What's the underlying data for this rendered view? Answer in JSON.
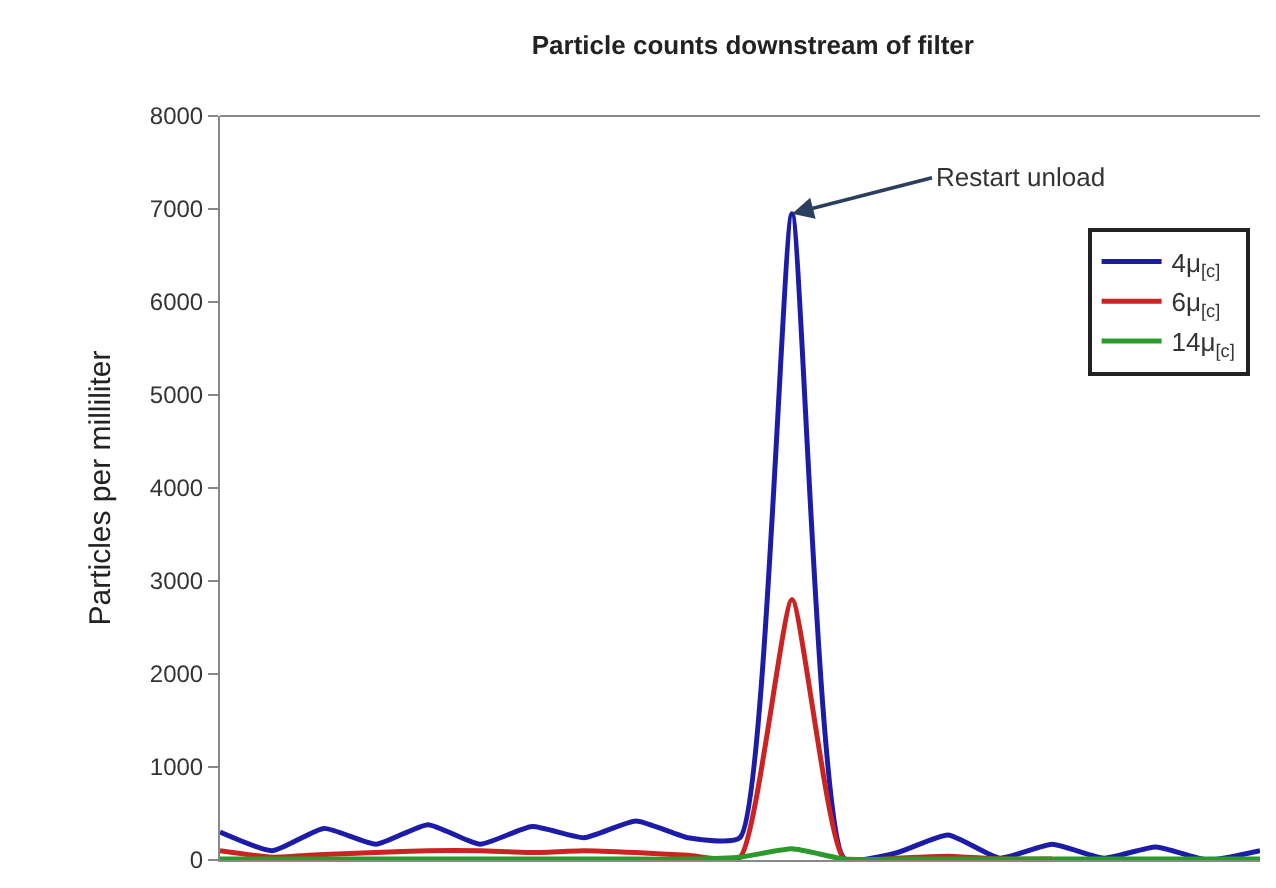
{
  "chart_data": {
    "type": "line",
    "title": "Particle counts downstream of filter",
    "ylabel": "Particles per milliliter",
    "categories": [
      null,
      null,
      null,
      null,
      null,
      null,
      null,
      null,
      null,
      null,
      null,
      null,
      null,
      null,
      null,
      null,
      null,
      null,
      null,
      null,
      null
    ],
    "series": [
      {
        "name": "4μ$_{[c]}$",
        "color": "#1c1ca8",
        "values": [
          300,
          100,
          340,
          170,
          380,
          170,
          360,
          240,
          420,
          240,
          240,
          6950,
          20,
          75,
          270,
          20,
          170,
          20,
          140,
          0,
          100
        ]
      },
      {
        "name": "6μ$_{[c]}$",
        "color": "#cc2222",
        "values": [
          100,
          30,
          60,
          80,
          100,
          100,
          80,
          100,
          80,
          50,
          30,
          2800,
          10,
          20,
          40,
          10,
          10,
          null,
          null,
          null,
          null
        ]
      },
      {
        "name": "14μ$_{[c]}$",
        "color": "#2a9a2a",
        "values": [
          10,
          10,
          10,
          10,
          10,
          10,
          10,
          10,
          10,
          10,
          30,
          120,
          10,
          10,
          10,
          10,
          10,
          10,
          10,
          10,
          10
        ]
      }
    ],
    "annotations": [
      "Restart unload"
    ],
    "ylim": [
      0,
      8000
    ],
    "yticks": [
      0,
      1000,
      2000,
      3000,
      4000,
      5000,
      6000,
      7000,
      8000
    ],
    "legend": "top right",
    "tick_labels": "y",
    "marker": "none",
    "line_style": "solid"
  }
}
